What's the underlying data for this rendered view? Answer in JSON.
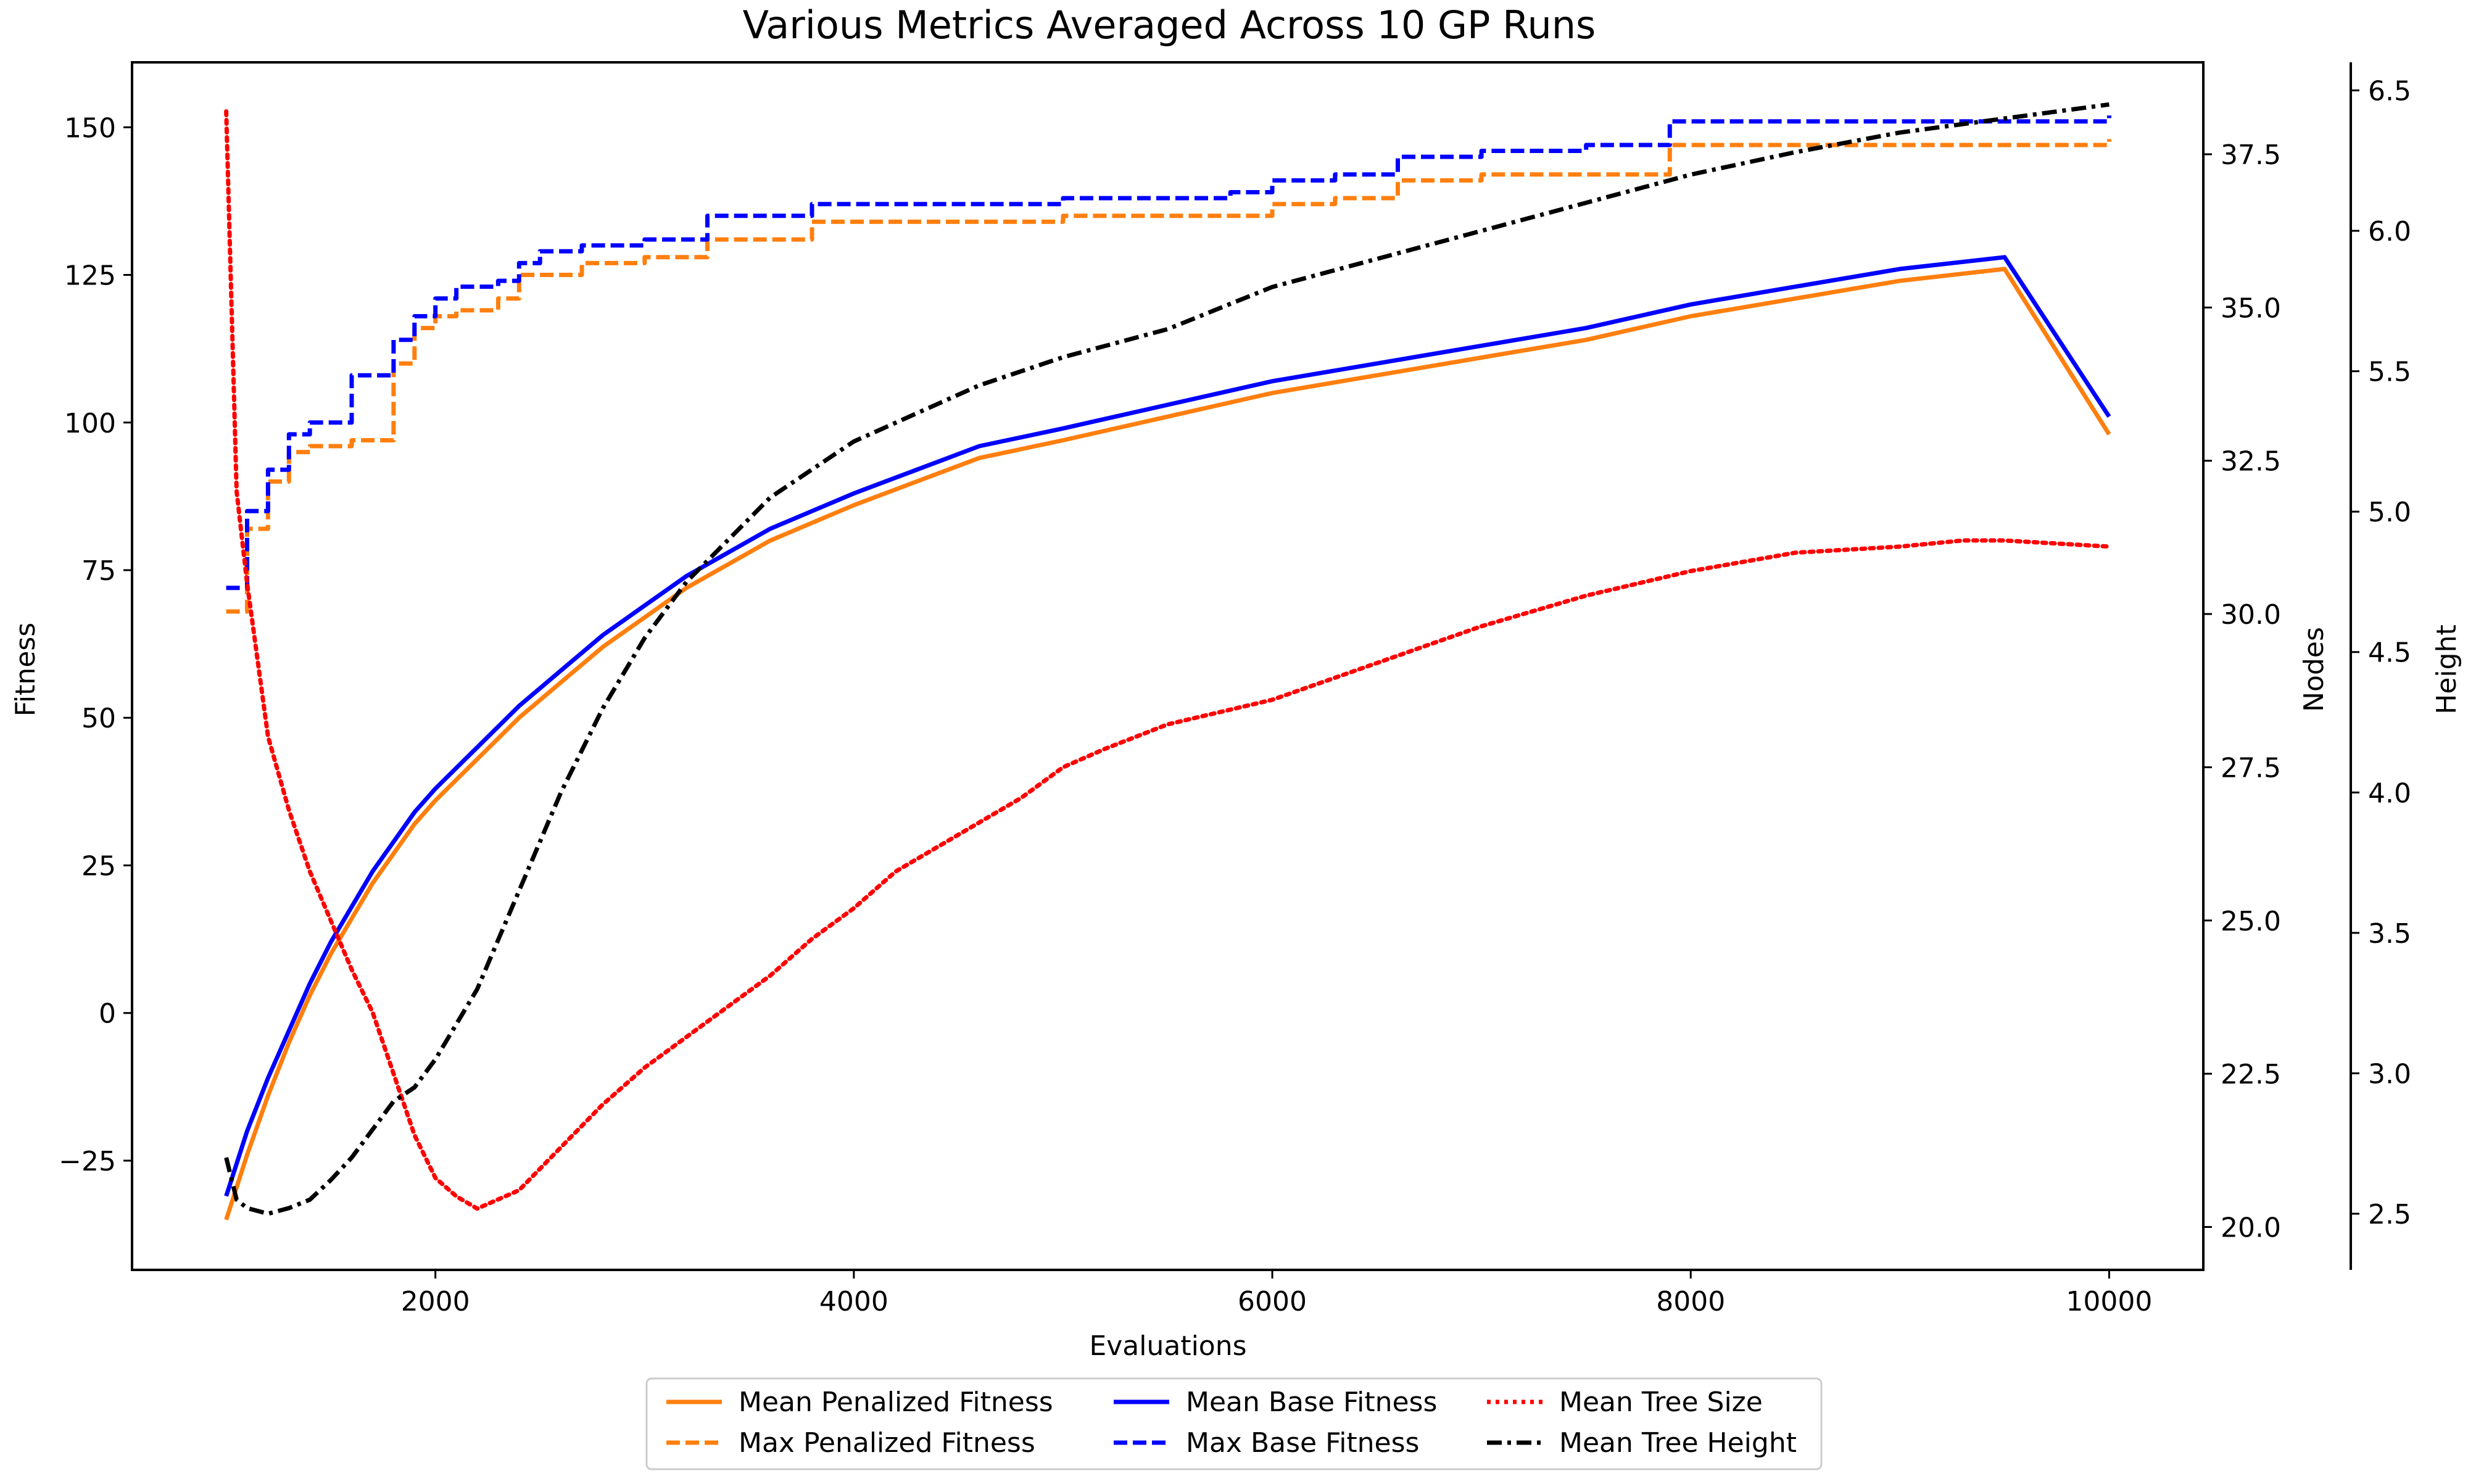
{
  "chart_data": {
    "type": "line",
    "title": "Various Metrics Averaged Across 10 GP Runs",
    "xlabel": "Evaluations",
    "ylabel": "Fitness",
    "y2label": "Nodes",
    "y3label": "Height",
    "xlim": [
      550,
      10450
    ],
    "ylim": [
      -43.5,
      161
    ],
    "y2lim": [
      19.3,
      39.0
    ],
    "y3lim": [
      2.3,
      6.6
    ],
    "x_ticks": [
      2000,
      4000,
      6000,
      8000,
      10000
    ],
    "x_tick_labels": [
      "2000",
      "4000",
      "6000",
      "8000",
      "10000"
    ],
    "y_ticks": [
      -25,
      0,
      25,
      50,
      75,
      100,
      125,
      150
    ],
    "y_tick_labels": [
      "−25",
      "0",
      "25",
      "50",
      "75",
      "100",
      "125",
      "150"
    ],
    "y2_ticks": [
      20.0,
      22.5,
      25.0,
      27.5,
      30.0,
      32.5,
      35.0,
      37.5
    ],
    "y2_tick_labels": [
      "20.0",
      "22.5",
      "25.0",
      "27.5",
      "30.0",
      "32.5",
      "35.0",
      "37.5"
    ],
    "y3_ticks": [
      2.5,
      3.0,
      3.5,
      4.0,
      4.5,
      5.0,
      5.5,
      6.0,
      6.5
    ],
    "y3_tick_labels": [
      "2.5",
      "3.0",
      "3.5",
      "4.0",
      "4.5",
      "5.0",
      "5.5",
      "6.0",
      "6.5"
    ],
    "grid": false,
    "legend_position": "bottom-center",
    "series": [
      {
        "name": "Mean Penalized Fitness",
        "axis": "left",
        "color": "#ff7f0e",
        "style": "solid",
        "x": [
          1000,
          1100,
          1200,
          1300,
          1400,
          1500,
          1600,
          1700,
          1800,
          1900,
          2000,
          2200,
          2400,
          2600,
          2800,
          3000,
          3200,
          3400,
          3600,
          3800,
          4000,
          4300,
          4600,
          5000,
          5500,
          6000,
          6500,
          7000,
          7500,
          8000,
          8500,
          9000,
          9500,
          10000
        ],
        "y": [
          -35,
          -24,
          -14,
          -5,
          3,
          10,
          16,
          22,
          27,
          32,
          36,
          43,
          50,
          56,
          62,
          67,
          72,
          76,
          80,
          83,
          86,
          90,
          94,
          97,
          101,
          105,
          108,
          111,
          114,
          118,
          121,
          124,
          126,
          98
        ]
      },
      {
        "name": "Mean Base Fitness",
        "axis": "left",
        "color": "#0000ff",
        "style": "solid",
        "x": [
          1000,
          1100,
          1200,
          1300,
          1400,
          1500,
          1600,
          1700,
          1800,
          1900,
          2000,
          2200,
          2400,
          2600,
          2800,
          3000,
          3200,
          3400,
          3600,
          3800,
          4000,
          4300,
          4600,
          5000,
          5500,
          6000,
          6500,
          7000,
          7500,
          8000,
          8500,
          9000,
          9500,
          10000
        ],
        "y": [
          -31,
          -20,
          -11,
          -3,
          5,
          12,
          18,
          24,
          29,
          34,
          38,
          45,
          52,
          58,
          64,
          69,
          74,
          78,
          82,
          85,
          88,
          92,
          96,
          99,
          103,
          107,
          110,
          113,
          116,
          120,
          123,
          126,
          128,
          101
        ]
      },
      {
        "name": "Max Penalized Fitness",
        "axis": "left",
        "color": "#ff7f0e",
        "style": "dashed",
        "x": [
          1000,
          1100,
          1200,
          1300,
          1400,
          1600,
          1800,
          1900,
          2000,
          2100,
          2300,
          2400,
          2500,
          2700,
          3000,
          3300,
          3800,
          4000,
          4800,
          5000,
          5800,
          6000,
          6300,
          6600,
          7000,
          7500,
          7900,
          8000,
          8500,
          9000,
          9500,
          10000
        ],
        "y": [
          68,
          82,
          90,
          95,
          96,
          97,
          110,
          116,
          118,
          119,
          121,
          125,
          125,
          127,
          128,
          131,
          134,
          134,
          134,
          135,
          135,
          137,
          138,
          141,
          142,
          142,
          147,
          147,
          147,
          147,
          147,
          148
        ]
      },
      {
        "name": "Max Base Fitness",
        "axis": "left",
        "color": "#0000ff",
        "style": "dashed",
        "x": [
          1000,
          1100,
          1200,
          1300,
          1400,
          1600,
          1800,
          1900,
          2000,
          2100,
          2300,
          2400,
          2500,
          2700,
          3000,
          3300,
          3800,
          4000,
          4800,
          5000,
          5800,
          6000,
          6300,
          6600,
          7000,
          7500,
          7900,
          8000,
          8500,
          9000,
          9500,
          10000
        ],
        "y": [
          72,
          85,
          92,
          98,
          100,
          108,
          114,
          118,
          121,
          123,
          124,
          127,
          129,
          130,
          131,
          135,
          137,
          137,
          137,
          138,
          139,
          141,
          142,
          145,
          146,
          147,
          151,
          151,
          151,
          151,
          151,
          152
        ]
      },
      {
        "name": "Mean Tree Size",
        "axis": "right-nodes",
        "color": "#ff0000",
        "style": "dotted",
        "x": [
          1000,
          1050,
          1100,
          1200,
          1300,
          1400,
          1500,
          1600,
          1700,
          1800,
          1900,
          2000,
          2100,
          2200,
          2400,
          2600,
          2800,
          3000,
          3200,
          3400,
          3600,
          3800,
          4000,
          4200,
          4500,
          4800,
          5000,
          5200,
          5500,
          6000,
          6500,
          7000,
          7500,
          8000,
          8500,
          9000,
          9300,
          9500,
          10000
        ],
        "y": [
          38.2,
          32.0,
          30.5,
          28.0,
          26.8,
          25.8,
          25.0,
          24.2,
          23.5,
          22.5,
          21.5,
          20.8,
          20.5,
          20.3,
          20.6,
          21.3,
          22.0,
          22.6,
          23.1,
          23.6,
          24.1,
          24.7,
          25.2,
          25.8,
          26.4,
          27.0,
          27.5,
          27.8,
          28.2,
          28.6,
          29.2,
          29.8,
          30.3,
          30.7,
          31.0,
          31.1,
          31.2,
          31.2,
          31.1
        ]
      },
      {
        "name": "Mean Tree Height",
        "axis": "right-height",
        "color": "#000000",
        "style": "dashdot",
        "x": [
          1000,
          1050,
          1100,
          1200,
          1300,
          1400,
          1500,
          1600,
          1700,
          1800,
          1900,
          2000,
          2200,
          2400,
          2600,
          2800,
          3000,
          3200,
          3400,
          3600,
          3800,
          4000,
          4300,
          4600,
          5000,
          5500,
          6000,
          6500,
          7000,
          7500,
          8000,
          8500,
          9000,
          9500,
          10000
        ],
        "y": [
          2.7,
          2.55,
          2.52,
          2.5,
          2.52,
          2.55,
          2.62,
          2.7,
          2.8,
          2.9,
          2.95,
          3.05,
          3.3,
          3.65,
          4.0,
          4.3,
          4.55,
          4.75,
          4.9,
          5.05,
          5.15,
          5.25,
          5.35,
          5.45,
          5.55,
          5.65,
          5.8,
          5.9,
          6.0,
          6.1,
          6.2,
          6.28,
          6.35,
          6.4,
          6.45
        ]
      }
    ],
    "legend": [
      [
        "Mean Penalized Fitness",
        "Mean Base Fitness",
        "Mean Tree Size"
      ],
      [
        "Max Penalized Fitness",
        "Max Base Fitness",
        "Mean Tree Height"
      ]
    ]
  }
}
